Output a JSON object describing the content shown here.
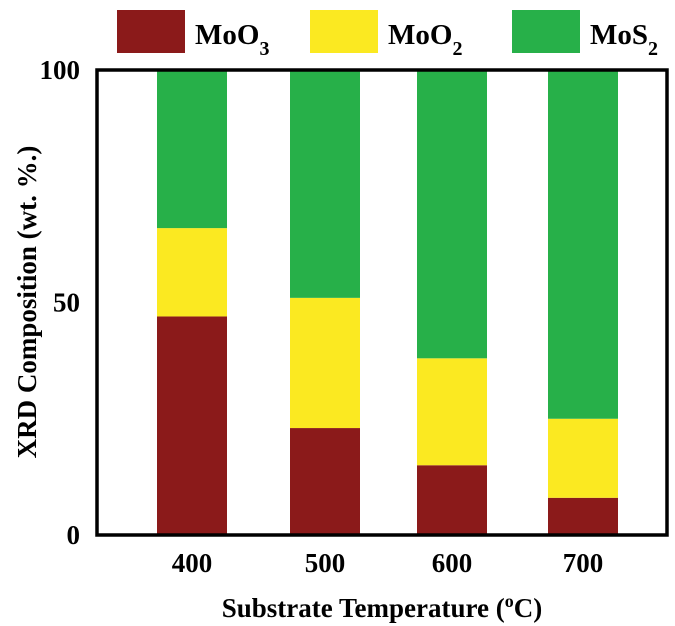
{
  "chart_data": {
    "type": "bar",
    "stacked": true,
    "categories": [
      "400",
      "500",
      "600",
      "700"
    ],
    "series": [
      {
        "name": "MoO3",
        "display": [
          "MoO",
          "3"
        ],
        "color": "#8b1a1a",
        "values": [
          47,
          23,
          15,
          8
        ]
      },
      {
        "name": "MoO2",
        "display": [
          "MoO",
          "2"
        ],
        "color": "#fbe921",
        "values": [
          19,
          28,
          23,
          17
        ]
      },
      {
        "name": "MoS2",
        "display": [
          "MoS",
          "2"
        ],
        "color": "#27b049",
        "values": [
          34,
          49,
          62,
          75
        ]
      }
    ],
    "xlabel": {
      "main": "Substrate Temperature (",
      "sup": "o",
      "unit": "C)"
    },
    "ylabel": "XRD Composition (wt. %.)",
    "ylim": [
      0,
      100
    ],
    "yticks": [
      0,
      50,
      100
    ],
    "grid": false,
    "legend": "top"
  }
}
